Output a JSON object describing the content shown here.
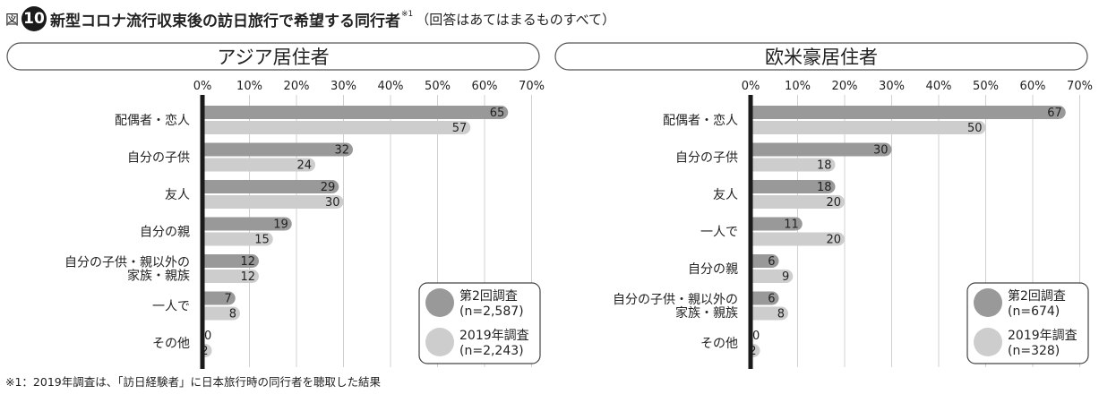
{
  "figure": {
    "prefix": "図",
    "number": "10",
    "title": "新型コロナ流行収束後の訪日旅行で希望する同行者",
    "note_mark": "※1",
    "subtitle": "（回答はあてはまるものすべて）"
  },
  "footnote": "※1：2019年調査は、「訪日経験者」に日本旅行時の同行者を聴取した結果",
  "colors": {
    "series_2nd": "#999999",
    "series_2019": "#cdcdcd",
    "axis": "#1a1a1a",
    "grid": "#d0d0d0"
  },
  "chart_data": [
    {
      "type": "bar",
      "orientation": "horizontal",
      "title": "アジア居住者",
      "xlim": [
        0,
        70
      ],
      "ticks": [
        "0%",
        "10%",
        "20%",
        "30%",
        "40%",
        "50%",
        "60%",
        "70%"
      ],
      "categories": [
        "配偶者・恋人",
        "自分の子供",
        "友人",
        "自分の親",
        "自分の子供・親以外の\n家族・親族",
        "一人で",
        "その他"
      ],
      "series": [
        {
          "name": "第2回調査",
          "n": "(n=2,587)",
          "values": [
            65,
            32,
            29,
            19,
            12,
            7,
            0
          ]
        },
        {
          "name": "2019年調査",
          "n": "(n=2,243)",
          "values": [
            57,
            24,
            30,
            15,
            12,
            8,
            2
          ]
        }
      ],
      "legend_position": "bottom-right"
    },
    {
      "type": "bar",
      "orientation": "horizontal",
      "title": "欧米豪居住者",
      "xlim": [
        0,
        70
      ],
      "ticks": [
        "0%",
        "10%",
        "20%",
        "30%",
        "40%",
        "50%",
        "60%",
        "70%"
      ],
      "categories": [
        "配偶者・恋人",
        "自分の子供",
        "友人",
        "一人で",
        "自分の親",
        "自分の子供・親以外の\n家族・親族",
        "その他"
      ],
      "series": [
        {
          "name": "第2回調査",
          "n": "(n=674)",
          "values": [
            67,
            30,
            18,
            11,
            6,
            6,
            0
          ]
        },
        {
          "name": "2019年調査",
          "n": "(n=328)",
          "values": [
            50,
            18,
            20,
            20,
            9,
            8,
            2
          ]
        }
      ],
      "legend_position": "bottom-right"
    }
  ]
}
